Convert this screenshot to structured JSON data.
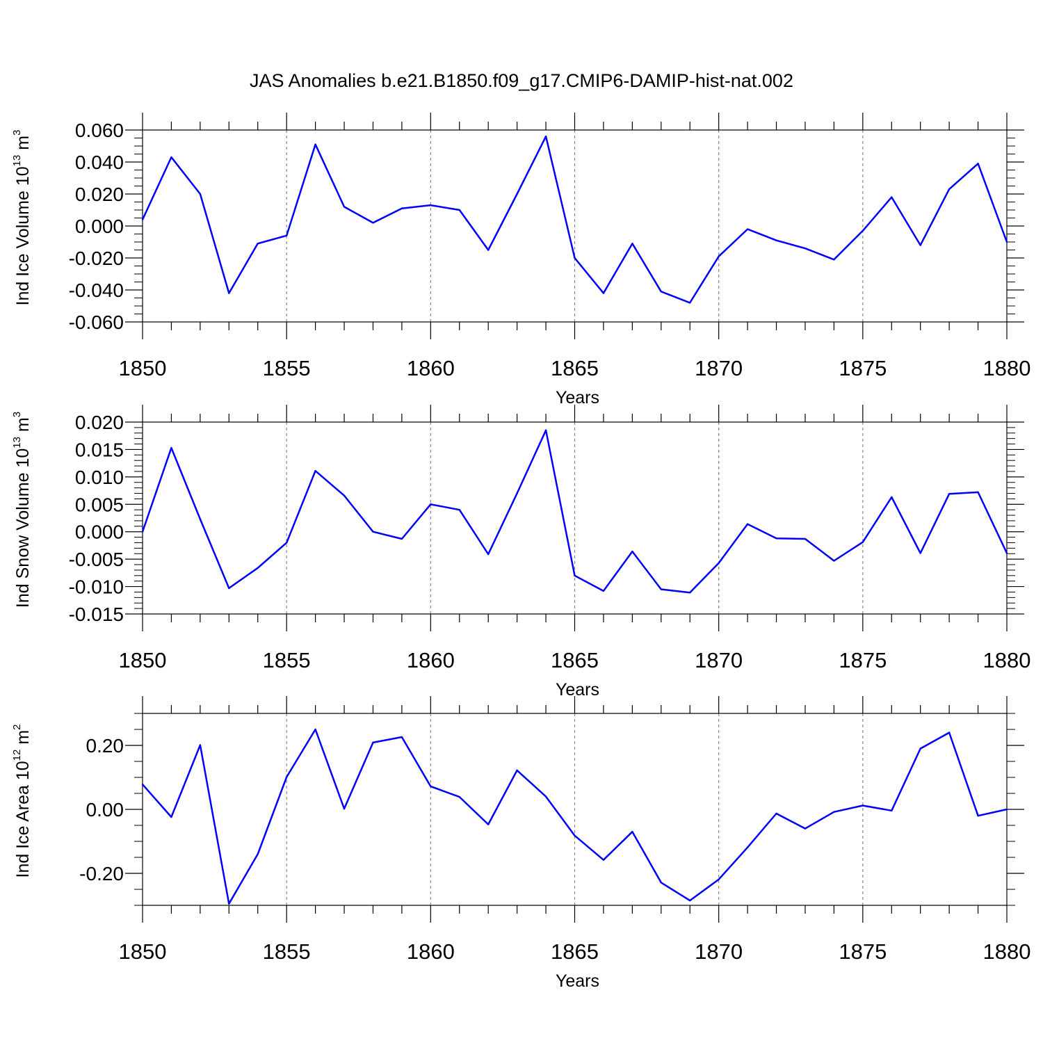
{
  "title": "JAS Anomalies b.e21.B1850.f09_g17.CMIP6-DAMIP-hist-nat.002",
  "line_color": "#0000ff",
  "chart_data": [
    {
      "type": "line",
      "ylabel": "Ind Ice Volume",
      "ylabel_base": "10",
      "ylabel_exp": "13",
      "ylabel_unit": "m",
      "ylabel_unit_exp": "3",
      "xlabel": "Years",
      "xlim": [
        1850,
        1880
      ],
      "ylim": [
        -0.06,
        0.06
      ],
      "x_ticks": [
        "1850",
        "1855",
        "1860",
        "1865",
        "1870",
        "1875",
        "1880"
      ],
      "y_ticks": [
        {
          "value": -0.06,
          "label": "-0.060"
        },
        {
          "value": -0.04,
          "label": "-0.040"
        },
        {
          "value": -0.02,
          "label": "-0.020"
        },
        {
          "value": 0.0,
          "label": "0.000"
        },
        {
          "value": 0.02,
          "label": "0.020"
        },
        {
          "value": 0.04,
          "label": "0.040"
        },
        {
          "value": 0.06,
          "label": "0.060"
        }
      ],
      "y_minor_step": 0.005,
      "x": [
        1850,
        1851,
        1852,
        1853,
        1854,
        1855,
        1856,
        1857,
        1858,
        1859,
        1860,
        1861,
        1862,
        1863,
        1864,
        1865,
        1866,
        1867,
        1868,
        1869,
        1870,
        1871,
        1872,
        1873,
        1874,
        1875,
        1876,
        1877,
        1878,
        1879,
        1880
      ],
      "values": [
        0.004,
        0.043,
        0.02,
        -0.042,
        -0.011,
        -0.006,
        0.051,
        0.012,
        0.002,
        0.011,
        0.013,
        0.01,
        -0.015,
        0.02,
        0.056,
        -0.02,
        -0.042,
        -0.011,
        -0.041,
        -0.048,
        -0.019,
        -0.002,
        -0.009,
        -0.014,
        -0.021,
        -0.003,
        0.018,
        -0.012,
        0.023,
        0.039,
        -0.01
      ]
    },
    {
      "type": "line",
      "ylabel": "Ind Snow Volume",
      "ylabel_base": "10",
      "ylabel_exp": "13",
      "ylabel_unit": "m",
      "ylabel_unit_exp": "3",
      "xlabel": "Years",
      "xlim": [
        1850,
        1880
      ],
      "ylim": [
        -0.015,
        0.02
      ],
      "x_ticks": [
        "1850",
        "1855",
        "1860",
        "1865",
        "1870",
        "1875",
        "1880"
      ],
      "y_ticks": [
        {
          "value": -0.015,
          "label": "-0.015"
        },
        {
          "value": -0.01,
          "label": "-0.010"
        },
        {
          "value": -0.005,
          "label": "-0.005"
        },
        {
          "value": 0.0,
          "label": "0.000"
        },
        {
          "value": 0.005,
          "label": "0.005"
        },
        {
          "value": 0.01,
          "label": "0.010"
        },
        {
          "value": 0.015,
          "label": "0.015"
        },
        {
          "value": 0.02,
          "label": "0.020"
        }
      ],
      "y_minor_step": 0.001,
      "x": [
        1850,
        1851,
        1852,
        1853,
        1854,
        1855,
        1856,
        1857,
        1858,
        1859,
        1860,
        1861,
        1862,
        1863,
        1864,
        1865,
        1866,
        1867,
        1868,
        1869,
        1870,
        1871,
        1872,
        1873,
        1874,
        1875,
        1876,
        1877,
        1878,
        1879,
        1880
      ],
      "values": [
        0.0,
        0.0153,
        0.0023,
        -0.0103,
        -0.0066,
        -0.002,
        0.0111,
        0.0066,
        0.0,
        -0.0013,
        0.005,
        0.004,
        -0.0041,
        0.007,
        0.0185,
        -0.008,
        -0.0108,
        -0.0036,
        -0.0105,
        -0.0111,
        -0.0057,
        0.0014,
        -0.0012,
        -0.0013,
        -0.0053,
        -0.0019,
        0.0063,
        -0.0039,
        0.0069,
        0.0072,
        -0.0039
      ]
    },
    {
      "type": "line",
      "ylabel": "Ind Ice Area",
      "ylabel_base": "10",
      "ylabel_exp": "12",
      "ylabel_unit": "m",
      "ylabel_unit_exp": "2",
      "xlabel": "Years",
      "xlim": [
        1850,
        1880
      ],
      "ylim": [
        -0.3,
        0.3
      ],
      "x_ticks": [
        "1850",
        "1855",
        "1860",
        "1865",
        "1870",
        "1875",
        "1880"
      ],
      "y_ticks": [
        {
          "value": -0.2,
          "label": "-0.20"
        },
        {
          "value": 0.0,
          "label": "0.00"
        },
        {
          "value": 0.2,
          "label": "0.20"
        }
      ],
      "y_minor_step": 0.05,
      "x": [
        1850,
        1851,
        1852,
        1853,
        1854,
        1855,
        1856,
        1857,
        1858,
        1859,
        1860,
        1861,
        1862,
        1863,
        1864,
        1865,
        1866,
        1867,
        1868,
        1869,
        1870,
        1871,
        1872,
        1873,
        1874,
        1875,
        1876,
        1877,
        1878,
        1879,
        1880
      ],
      "values": [
        0.078,
        -0.024,
        0.201,
        -0.295,
        -0.14,
        0.101,
        0.25,
        0.002,
        0.209,
        0.226,
        0.072,
        0.039,
        -0.047,
        0.122,
        0.04,
        -0.082,
        -0.158,
        -0.07,
        -0.229,
        -0.285,
        -0.219,
        -0.119,
        -0.013,
        -0.06,
        -0.008,
        0.012,
        -0.004,
        0.19,
        0.24,
        -0.02,
        0.0
      ]
    }
  ]
}
